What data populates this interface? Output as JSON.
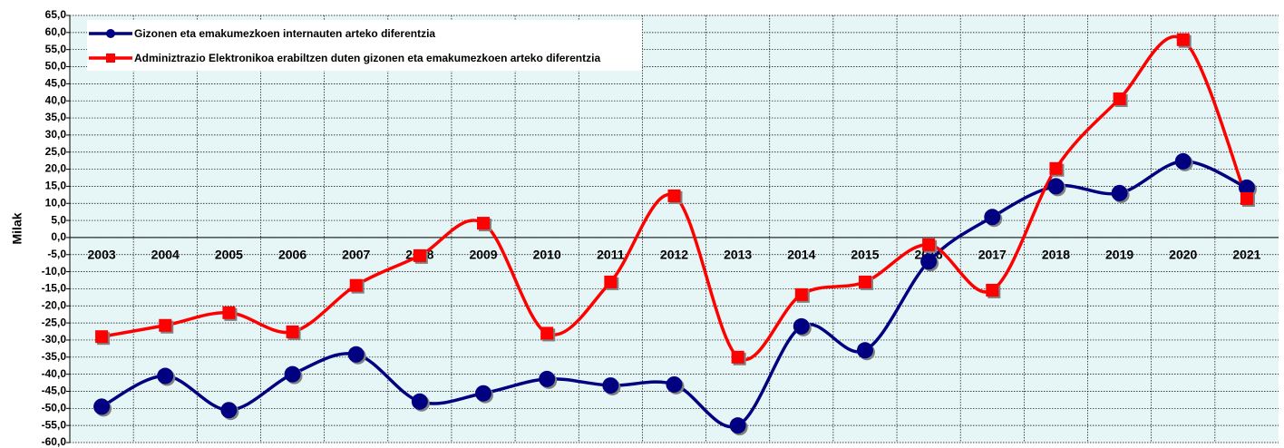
{
  "chart_data": {
    "type": "line",
    "y_label": "Milak",
    "categories": [
      "2003",
      "2004",
      "2005",
      "2006",
      "2007",
      "2008",
      "2009",
      "2010",
      "2011",
      "2012",
      "2013",
      "2014",
      "2015",
      "2016",
      "2017",
      "2018",
      "2019",
      "2020",
      "2021"
    ],
    "series": [
      {
        "name": "Gizonen eta emakumezkoen internauten arteko diferentzia",
        "color": "#000080",
        "marker": "circle",
        "values": [
          -49.5,
          -40.5,
          -50.5,
          -40,
          -34.2,
          -48,
          -45.6,
          -41.4,
          -43.3,
          -43,
          -55,
          -26,
          -33,
          -7,
          6,
          15,
          13,
          22.3,
          14.6
        ]
      },
      {
        "name": "Adminiztrazio Elektronikoa erabiltzen duten gizonen eta emakumezkoen arteko diferentzia",
        "color": "#ff0000",
        "marker": "square",
        "values": [
          -29,
          -25.7,
          -22,
          -27.6,
          -14,
          -5.3,
          4.2,
          -28,
          -13,
          12.2,
          -35,
          -16.7,
          -13,
          -2.1,
          -15.4,
          20.2,
          40.6,
          57.9,
          11.4
        ]
      }
    ],
    "ylim": [
      -60,
      65
    ],
    "yticks": [
      {
        "value": -60,
        "label": "-60,0"
      },
      {
        "value": -55,
        "label": "-55,0"
      },
      {
        "value": -50,
        "label": "-50,0"
      },
      {
        "value": -45,
        "label": "-45,0"
      },
      {
        "value": -40,
        "label": "-40,0"
      },
      {
        "value": -35,
        "label": "-35,0"
      },
      {
        "value": -30,
        "label": "-30,0"
      },
      {
        "value": -25,
        "label": "-25,0"
      },
      {
        "value": -20,
        "label": "-20,0"
      },
      {
        "value": -15,
        "label": "-15,0"
      },
      {
        "value": -10,
        "label": "-10,0"
      },
      {
        "value": -5,
        "label": "-5,0"
      },
      {
        "value": 0,
        "label": "0,0"
      },
      {
        "value": 5,
        "label": "5,0"
      },
      {
        "value": 10,
        "label": "10,0"
      },
      {
        "value": 15,
        "label": "15,0"
      },
      {
        "value": 20,
        "label": "20,0"
      },
      {
        "value": 25,
        "label": "25,0"
      },
      {
        "value": 30,
        "label": "30,0"
      },
      {
        "value": 35,
        "label": "35,0"
      },
      {
        "value": 40,
        "label": "40,0"
      },
      {
        "value": 45,
        "label": "45,0"
      },
      {
        "value": 50,
        "label": "50,0"
      },
      {
        "value": 55,
        "label": "55,0"
      },
      {
        "value": 60,
        "label": "60,0"
      },
      {
        "value": 65,
        "label": "65,0"
      }
    ],
    "grid": true,
    "background": "#e6f6f6",
    "smooth": true,
    "legend_position": "upper left"
  }
}
